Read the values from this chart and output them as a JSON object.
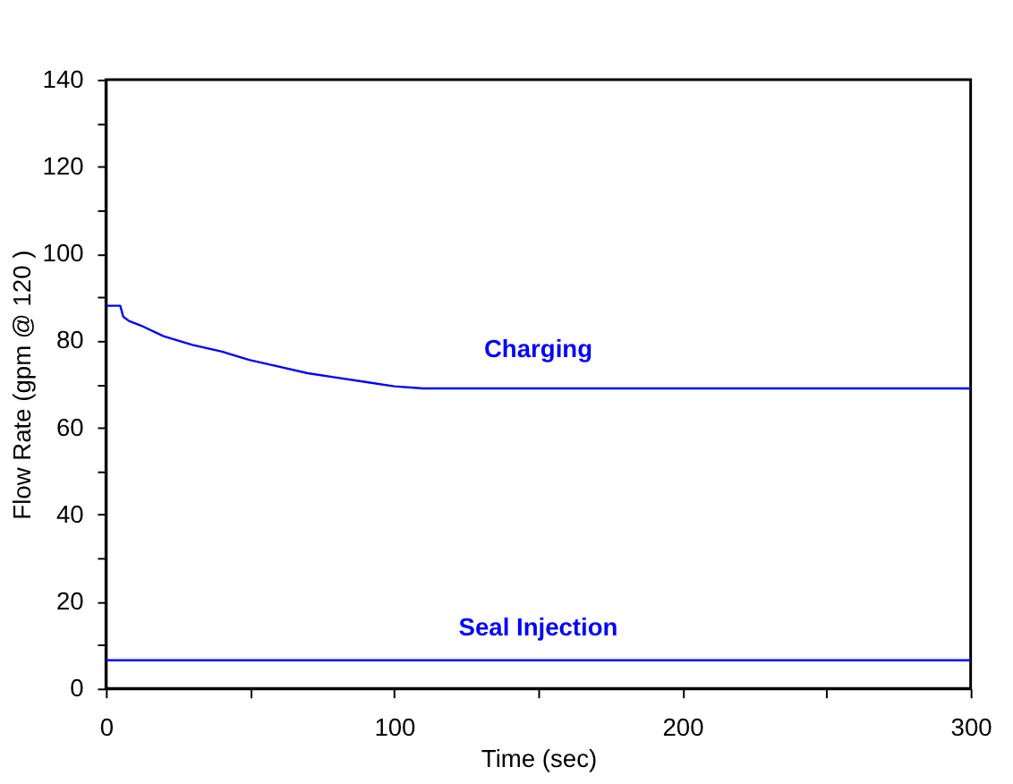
{
  "chart_data": {
    "type": "line",
    "xlabel": "Time (sec)",
    "ylabel": "Flow Rate (gpm @ 120    )",
    "xlim": [
      0,
      300
    ],
    "ylim": [
      0,
      140
    ],
    "xticks": [
      0,
      {
        "value": 50,
        "label": null
      },
      100,
      {
        "value": 150,
        "label": null
      },
      200,
      {
        "value": 250,
        "label": null
      },
      300
    ],
    "yticks": [
      0,
      {
        "value": 10,
        "label": null
      },
      20,
      {
        "value": 30,
        "label": null
      },
      40,
      {
        "value": 50,
        "label": null
      },
      60,
      {
        "value": 70,
        "label": null
      },
      80,
      {
        "value": 90,
        "label": null
      },
      100,
      {
        "value": 110,
        "label": null
      },
      120,
      {
        "value": 130,
        "label": null
      },
      140
    ],
    "grid": false,
    "marker": "none",
    "line_style": "solid",
    "series": [
      {
        "name": "Charging",
        "color": "#0000ff",
        "x": [
          0,
          5,
          6,
          8,
          12,
          20,
          30,
          40,
          50,
          60,
          70,
          80,
          90,
          100,
          110,
          130,
          150,
          200,
          250,
          300
        ],
        "values": [
          88,
          88,
          85.5,
          84.5,
          83.5,
          81,
          79,
          77.5,
          75.5,
          74,
          72.5,
          71.5,
          70.5,
          69.5,
          69,
          69,
          69,
          69,
          69,
          69
        ]
      },
      {
        "name": "Seal Injection",
        "color": "#0000ff",
        "x": [
          0,
          50,
          100,
          150,
          200,
          250,
          300
        ],
        "values": [
          6.5,
          6.5,
          6.5,
          6.5,
          6.5,
          6.5,
          6.5
        ]
      }
    ]
  }
}
